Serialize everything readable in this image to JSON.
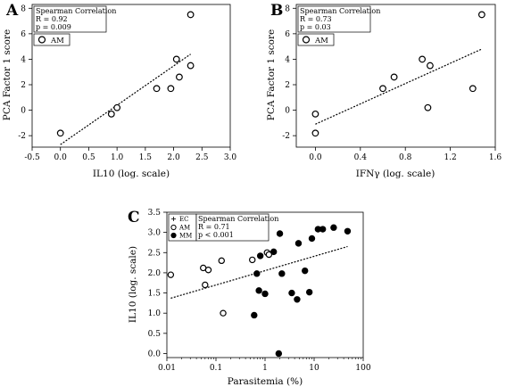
{
  "chart_data": [
    {
      "type": "scatter",
      "panel": "A",
      "xlabel": "IL10 (log. scale)",
      "ylabel": "PCA Factor 1 score",
      "xlim": [
        -0.5,
        3.0
      ],
      "ylim": [
        -2.9,
        8.3
      ],
      "xticks": [
        "-0.5",
        "0.0",
        "0.5",
        "1.0",
        "1.5",
        "2.0",
        "2.5",
        "3.0"
      ],
      "xtick_values": [
        -0.5,
        0.0,
        0.5,
        1.0,
        1.5,
        2.0,
        2.5,
        3.0
      ],
      "yticks": [
        "-2",
        "0",
        "2",
        "4",
        "6",
        "8"
      ],
      "ytick_values": [
        -2,
        0,
        2,
        4,
        6,
        8
      ],
      "stats": {
        "title": "Spearman Correlation",
        "r": "R = 0.92",
        "p": "p = 0.009"
      },
      "legend": [
        {
          "label": "AM",
          "marker": "open-circle"
        }
      ],
      "series": [
        {
          "name": "AM",
          "marker": "open-circle",
          "x": [
            0.0,
            0.9,
            1.0,
            1.7,
            1.95,
            2.05,
            2.1,
            2.3,
            2.3
          ],
          "y": [
            -1.8,
            -0.3,
            0.2,
            1.7,
            1.7,
            4.0,
            2.6,
            3.5,
            7.5
          ]
        }
      ],
      "trendline": {
        "x": [
          0.0,
          2.3
        ],
        "y": [
          -2.7,
          4.4
        ],
        "style": "dashed"
      }
    },
    {
      "type": "scatter",
      "panel": "B",
      "xlabel": "IFNγ (log. scale)",
      "ylabel": "PCA Factor 1 score",
      "xlim": [
        -0.17,
        1.6
      ],
      "ylim": [
        -2.9,
        8.3
      ],
      "xticks": [
        "0.0",
        "0.4",
        "0.8",
        "1.2",
        "1.6"
      ],
      "xtick_values": [
        0.0,
        0.4,
        0.8,
        1.2,
        1.6
      ],
      "yticks": [
        "-2",
        "0",
        "2",
        "4",
        "6",
        "8"
      ],
      "ytick_values": [
        -2,
        0,
        2,
        4,
        6,
        8
      ],
      "stats": {
        "title": "Spearman Correlation",
        "r": "R = 0.73",
        "p": "p = 0.03"
      },
      "legend": [
        {
          "label": "AM",
          "marker": "open-circle"
        }
      ],
      "series": [
        {
          "name": "AM",
          "marker": "open-circle",
          "x": [
            0.0,
            0.0,
            0.6,
            0.7,
            0.95,
            1.0,
            1.02,
            1.4,
            1.48
          ],
          "y": [
            -1.8,
            -0.3,
            1.7,
            2.6,
            4.0,
            0.2,
            3.5,
            1.7,
            7.5
          ]
        }
      ],
      "trendline": {
        "x": [
          0.0,
          1.48
        ],
        "y": [
          -1.1,
          4.8
        ],
        "style": "dashed"
      }
    },
    {
      "type": "scatter",
      "panel": "C",
      "xlabel": "Parasitemia (%)",
      "ylabel": "IL10 (log. scale)",
      "xscale": "log",
      "xlim": [
        0.01,
        100
      ],
      "ylim": [
        -0.1,
        3.5
      ],
      "xticks": [
        "0.01",
        "0.1",
        "1",
        "10",
        "100"
      ],
      "xtick_values": [
        0.01,
        0.1,
        1,
        10,
        100
      ],
      "yticks": [
        "0.0",
        "0.5",
        "1.0",
        "1.5",
        "2.0",
        "2.5",
        "3.0",
        "3.5"
      ],
      "ytick_values": [
        0.0,
        0.5,
        1.0,
        1.5,
        2.0,
        2.5,
        3.0,
        3.5
      ],
      "stats": {
        "title": "Spearman Correlation",
        "r": "R = 0.71",
        "p": "p < 0.001"
      },
      "legend": [
        {
          "label": "EC",
          "marker": "plus"
        },
        {
          "label": "AM",
          "marker": "open-circle"
        },
        {
          "label": "MM",
          "marker": "filled-circle"
        }
      ],
      "series": [
        {
          "name": "AM",
          "marker": "open-circle",
          "x": [
            0.012,
            0.055,
            0.06,
            0.07,
            0.13,
            0.14,
            0.55,
            1.1,
            1.2
          ],
          "y": [
            1.95,
            2.12,
            1.7,
            2.07,
            2.3,
            1.0,
            2.32,
            2.5,
            2.45
          ]
        },
        {
          "name": "MM",
          "marker": "filled-circle",
          "x": [
            0.6,
            0.68,
            0.75,
            0.8,
            1.0,
            1.5,
            1.9,
            2.0,
            2.2,
            3.5,
            4.5,
            4.8,
            6.5,
            8.0,
            9.0,
            12,
            15,
            25,
            48
          ],
          "y": [
            0.95,
            1.98,
            1.56,
            2.42,
            1.48,
            2.52,
            0.0,
            2.97,
            1.98,
            1.5,
            1.34,
            2.73,
            2.05,
            1.52,
            2.85,
            3.08,
            3.08,
            3.12,
            3.03
          ]
        }
      ],
      "trendline": {
        "x": [
          0.012,
          48
        ],
        "y": [
          1.37,
          2.65
        ],
        "style": "dashed"
      }
    }
  ]
}
